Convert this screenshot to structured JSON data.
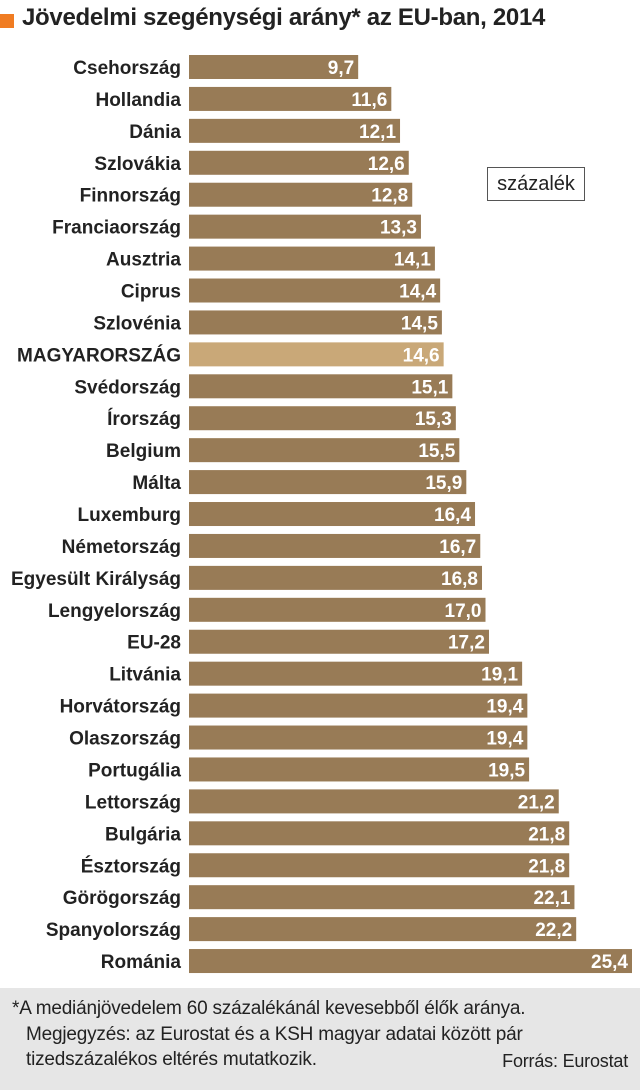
{
  "title": "Jövedelmi szegénységi arány* az EU-ban, 2014",
  "unit_label": "százalék",
  "footnote": "*A mediánjövedelem 60 százalékánál kevesebből élők aránya.",
  "remark_line1": "Megjegyzés: az Eurostat és a KSH magyar adatai között pár",
  "remark_line2": "tizedszázalékos eltérés mutatkozik.",
  "source": "Forrás: Eurostat",
  "colors": {
    "bar": "#987b56",
    "highlight_bar": "#c9a878",
    "title_square": "#f07c22",
    "footer_bg": "#e6e6e6"
  },
  "chart_data": {
    "type": "bar",
    "orientation": "horizontal",
    "categories": [
      "Csehország",
      "Hollandia",
      "Dánia",
      "Szlovákia",
      "Finnország",
      "Franciaország",
      "Ausztria",
      "Ciprus",
      "Szlovénia",
      "MAGYARORSZÁG",
      "Svédország",
      "Írország",
      "Belgium",
      "Málta",
      "Luxemburg",
      "Németország",
      "Egyesült Királyság",
      "Lengyelország",
      "EU-28",
      "Litvánia",
      "Horvátország",
      "Olaszország",
      "Portugália",
      "Lettország",
      "Bulgária",
      "Észtország",
      "Görögország",
      "Spanyolország",
      "Románia"
    ],
    "values": [
      9.7,
      11.6,
      12.1,
      12.6,
      12.8,
      13.3,
      14.1,
      14.4,
      14.5,
      14.6,
      15.1,
      15.3,
      15.5,
      15.9,
      16.4,
      16.7,
      16.8,
      17.0,
      17.2,
      19.1,
      19.4,
      19.4,
      19.5,
      21.2,
      21.8,
      21.8,
      22.1,
      22.2,
      25.4
    ],
    "value_labels": [
      "9,7",
      "11,6",
      "12,1",
      "12,6",
      "12,8",
      "13,3",
      "14,1",
      "14,4",
      "14,5",
      "14,6",
      "15,1",
      "15,3",
      "15,5",
      "15,9",
      "16,4",
      "16,7",
      "16,8",
      "17,0",
      "17,2",
      "19,1",
      "19,4",
      "19,4",
      "19,5",
      "21,2",
      "21,8",
      "21,8",
      "22,1",
      "22,2",
      "25,4"
    ],
    "highlight": "MAGYARORSZÁG",
    "xlim": [
      0,
      25.4
    ],
    "grid": false,
    "legend": "none"
  }
}
